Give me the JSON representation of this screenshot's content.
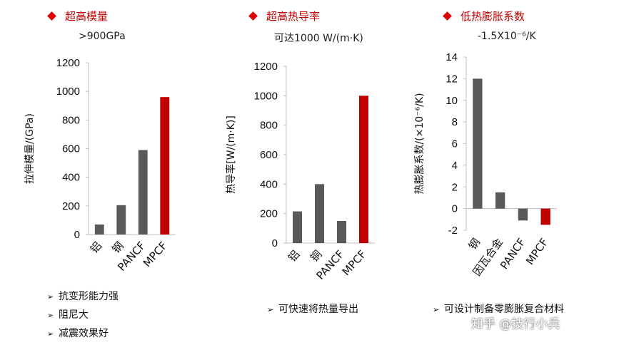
{
  "colors": {
    "gray": "#595959",
    "red": "#c00000",
    "accent": "#c00000"
  },
  "panels": [
    {
      "header": "超高模量",
      "subheader": ">900GPa",
      "bullets": [
        "抗变形能力强",
        "阻尼大",
        "减震效果好"
      ],
      "chart_data": {
        "type": "bar",
        "title": "",
        "xlabel": "",
        "ylabel": "拉伸模量/(GPa)",
        "categories": [
          "铝",
          "钢",
          "PANCF",
          "MPCF"
        ],
        "values": [
          70,
          205,
          590,
          960
        ],
        "bar_colors": [
          "gray",
          "gray",
          "gray",
          "red"
        ],
        "ylim": [
          0,
          1200
        ],
        "yticks": [
          0,
          200,
          400,
          600,
          800,
          1000,
          1200
        ],
        "grid": false,
        "legend": "none"
      }
    },
    {
      "header": "超高热导率",
      "subheader": "可达1000 W/(m·K)",
      "bullets": [
        "可快速将热量导出"
      ],
      "chart_data": {
        "type": "bar",
        "title": "",
        "xlabel": "",
        "ylabel": "热导率[W/(m·K)]",
        "categories": [
          "铝",
          "铜",
          "PANCF",
          "MPCF"
        ],
        "values": [
          215,
          400,
          150,
          1000
        ],
        "bar_colors": [
          "gray",
          "gray",
          "gray",
          "red"
        ],
        "ylim": [
          0,
          1200
        ],
        "yticks": [
          0,
          200,
          400,
          600,
          800,
          1000,
          1200
        ],
        "grid": false,
        "legend": "none"
      }
    },
    {
      "header": "低热膨胀系数",
      "subheader": "-1.5X10⁻⁶/K",
      "bullets": [
        "可设计制备零膨胀复合材料"
      ],
      "chart_data": {
        "type": "bar",
        "title": "",
        "xlabel": "",
        "ylabel": "热膨胀系数/(×10⁻⁶/K)",
        "categories": [
          "钢",
          "因瓦合金",
          "PANCF",
          "MPCF"
        ],
        "values": [
          12,
          1.5,
          -1.1,
          -1.5
        ],
        "bar_colors": [
          "gray",
          "gray",
          "gray",
          "red"
        ],
        "ylim": [
          -2,
          14
        ],
        "yticks": [
          -2,
          0,
          2,
          4,
          6,
          8,
          10,
          12,
          14
        ],
        "grid": false,
        "legend": "none"
      }
    }
  ],
  "watermark": "知乎 @技行小兵"
}
